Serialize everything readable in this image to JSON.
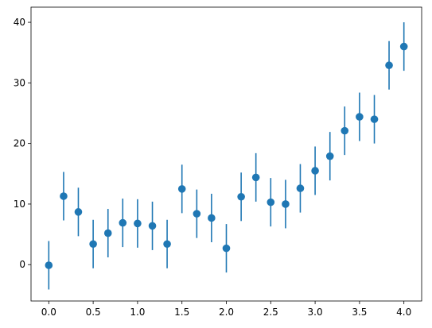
{
  "chart_data": {
    "type": "scatter",
    "title": "",
    "xlabel": "",
    "ylabel": "",
    "xlim": [
      -0.2,
      4.2
    ],
    "ylim": [
      -6,
      42.5
    ],
    "xticks": [
      0.0,
      0.5,
      1.0,
      1.5,
      2.0,
      2.5,
      3.0,
      3.5,
      4.0
    ],
    "xtick_labels": [
      "0.0",
      "0.5",
      "1.0",
      "1.5",
      "2.0",
      "2.5",
      "3.0",
      "3.5",
      "4.0"
    ],
    "yticks": [
      0,
      10,
      20,
      30,
      40
    ],
    "ytick_labels": [
      "0",
      "10",
      "20",
      "30",
      "40"
    ],
    "grid": false,
    "legend": "none",
    "color": "#1f77b4",
    "series": [
      {
        "x": [
          0.0,
          0.167,
          0.333,
          0.5,
          0.667,
          0.833,
          1.0,
          1.167,
          1.333,
          1.5,
          1.667,
          1.833,
          2.0,
          2.167,
          2.333,
          2.5,
          2.667,
          2.833,
          3.0,
          3.167,
          3.333,
          3.5,
          3.667,
          3.833,
          4.0
        ],
        "y": [
          -0.1,
          11.3,
          8.7,
          3.4,
          5.2,
          6.9,
          6.8,
          6.4,
          3.4,
          12.5,
          8.4,
          7.7,
          2.7,
          11.2,
          14.4,
          10.3,
          10.0,
          12.6,
          15.5,
          17.9,
          22.1,
          24.4,
          24.0,
          32.9,
          36.0
        ],
        "yerr": 4
      }
    ]
  }
}
